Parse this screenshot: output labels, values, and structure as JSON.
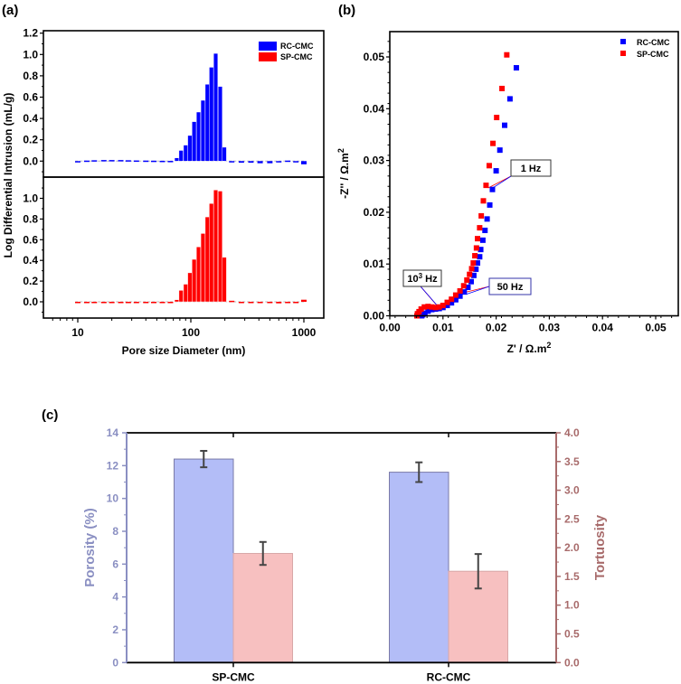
{
  "chart_data": [
    {
      "panel": "(a)",
      "type": "bar",
      "xlabel": "Pore size Diameter (nm)",
      "ylabel": "Log Differential Intrusion (mL/g)",
      "xscale": "log",
      "xlim": [
        5,
        1500
      ],
      "xticks": [
        "10",
        "100",
        "1000"
      ],
      "legend": {
        "position": "top-right",
        "entries": [
          "RC-CMC",
          "SP-CMC"
        ]
      },
      "subplots": [
        {
          "name": "RC-CMC",
          "color": "#0000ff",
          "ylim": [
            -0.1,
            1.2
          ],
          "yticks": [
            "0.0",
            "0.2",
            "0.4",
            "0.6",
            "0.8",
            "1.0",
            "1.2"
          ],
          "x": [
            75,
            82,
            90,
            98,
            107,
            117,
            128,
            140,
            152,
            166,
            182,
            198
          ],
          "values": [
            0.03,
            0.1,
            0.15,
            0.24,
            0.37,
            0.46,
            0.57,
            0.72,
            0.88,
            1.01,
            0.7,
            0.13
          ],
          "baseline_x": [
            10,
            12,
            14,
            17,
            20,
            24,
            28,
            33,
            40,
            47,
            56,
            66,
            230,
            280,
            340,
            410,
            500,
            600,
            720,
            850,
            1000
          ],
          "baseline_values": [
            0.0,
            0.005,
            0.008,
            0.01,
            0.01,
            0.01,
            0.008,
            0.006,
            0.005,
            0.004,
            0.003,
            0.002,
            -0.01,
            -0.015,
            -0.015,
            -0.02,
            -0.02,
            -0.01,
            0.005,
            -0.01,
            -0.03
          ]
        },
        {
          "name": "SP-CMC",
          "color": "#ff0000",
          "ylim": [
            -0.15,
            1.2
          ],
          "yticks": [
            "0.0",
            "0.2",
            "0.4",
            "0.6",
            "0.8",
            "1.0"
          ],
          "x": [
            75,
            82,
            90,
            98,
            107,
            117,
            128,
            140,
            152,
            166,
            182,
            198
          ],
          "values": [
            0.02,
            0.11,
            0.17,
            0.28,
            0.41,
            0.53,
            0.66,
            0.82,
            0.95,
            1.08,
            1.07,
            0.43
          ],
          "baseline_x": [
            10,
            12,
            14,
            17,
            20,
            24,
            28,
            33,
            40,
            47,
            56,
            66,
            230,
            280,
            340,
            410,
            500,
            600,
            720,
            850,
            1000
          ],
          "baseline_values": [
            0.0,
            0.0,
            0.0,
            0.0,
            0.0,
            0.0,
            0.0,
            0.0,
            -0.002,
            -0.002,
            -0.003,
            -0.003,
            0.01,
            -0.01,
            -0.008,
            -0.01,
            -0.01,
            -0.015,
            -0.01,
            -0.008,
            0.02
          ]
        }
      ]
    },
    {
      "panel": "(b)",
      "type": "scatter",
      "xlabel": "Z' / Ω.m²",
      "ylabel": "-Z'' / Ω.m²",
      "xlim": [
        0,
        0.055
      ],
      "ylim": [
        0,
        0.055
      ],
      "xticks": [
        "0.00",
        "0.01",
        "0.02",
        "0.03",
        "0.04",
        "0.05"
      ],
      "yticks": [
        "0.00",
        "0.01",
        "0.02",
        "0.03",
        "0.04",
        "0.05"
      ],
      "legend": {
        "position": "top-right",
        "entries": [
          "RC-CMC",
          "SP-CMC"
        ]
      },
      "series": [
        {
          "name": "RC-CMC",
          "color": "#0000ff",
          "x": [
            0.0238,
            0.0226,
            0.0216,
            0.0207,
            0.02,
            0.0193,
            0.0188,
            0.0183,
            0.0179,
            0.0175,
            0.0171,
            0.0169,
            0.0165,
            0.0162,
            0.0158,
            0.0153,
            0.0147,
            0.014,
            0.0132,
            0.0124,
            0.0116,
            0.0108,
            0.01,
            0.0093,
            0.0086,
            0.0079,
            0.0072,
            0.0066,
            0.0062,
            0.006
          ],
          "y": [
            0.0479,
            0.0419,
            0.0368,
            0.032,
            0.028,
            0.0244,
            0.0214,
            0.0187,
            0.0165,
            0.0146,
            0.0128,
            0.0114,
            0.0102,
            0.009,
            0.0078,
            0.0066,
            0.0055,
            0.0046,
            0.0038,
            0.0031,
            0.0025,
            0.002,
            0.0016,
            0.0014,
            0.0013,
            0.0012,
            0.0009,
            0.0005,
            0.0002,
            0.0
          ]
        },
        {
          "name": "SP-CMC",
          "color": "#ff0000",
          "x": [
            0.022,
            0.0211,
            0.0201,
            0.0194,
            0.0187,
            0.0181,
            0.0176,
            0.0172,
            0.0169,
            0.0165,
            0.0163,
            0.016,
            0.0157,
            0.0154,
            0.015,
            0.0145,
            0.0139,
            0.0132,
            0.0124,
            0.0116,
            0.0108,
            0.01,
            0.0093,
            0.0086,
            0.0079,
            0.0072,
            0.0065,
            0.0059,
            0.0055,
            0.0052,
            0.0051
          ],
          "y": [
            0.0504,
            0.0439,
            0.0383,
            0.0333,
            0.029,
            0.0252,
            0.0222,
            0.0193,
            0.017,
            0.0149,
            0.0131,
            0.0116,
            0.0102,
            0.0091,
            0.008,
            0.0069,
            0.0058,
            0.0048,
            0.004,
            0.0032,
            0.0026,
            0.002,
            0.0017,
            0.0016,
            0.0017,
            0.0018,
            0.0017,
            0.0013,
            0.0008,
            0.0004,
            0.0
          ]
        }
      ],
      "annotations": [
        {
          "text": "1 Hz",
          "point": [
            0.0185,
            0.0247
          ]
        },
        {
          "text": "10",
          "sup": "3",
          "suffix": " Hz",
          "point": [
            0.0092,
            0.0016
          ]
        },
        {
          "text": "50 Hz",
          "point": [
            0.014,
            0.0045
          ]
        }
      ]
    },
    {
      "panel": "(c)",
      "type": "bar",
      "categories": [
        "SP-CMC",
        "RC-CMC"
      ],
      "ylabel_left": "Porosity (%)",
      "ylabel_right": "Tortuosity",
      "ylim_left": [
        0,
        14
      ],
      "ylim_right": [
        0,
        4
      ],
      "yticks_left": [
        "0",
        "2",
        "4",
        "6",
        "8",
        "10",
        "12",
        "14"
      ],
      "yticks_right": [
        "0.0",
        "0.5",
        "1.0",
        "1.5",
        "2.0",
        "2.5",
        "3.0",
        "3.5",
        "4.0"
      ],
      "left_axis_color": "#8a8fc2",
      "right_axis_color": "#a86b6b",
      "series": [
        {
          "name": "Porosity",
          "axis": "left",
          "color": "#b3bdf7",
          "values": [
            12.4,
            11.6
          ],
          "errors": [
            0.5,
            0.6
          ]
        },
        {
          "name": "Tortuosity",
          "axis": "right",
          "color": "#f7c0c0",
          "values": [
            1.9,
            1.59
          ],
          "errors": [
            0.2,
            0.3
          ]
        }
      ]
    }
  ]
}
